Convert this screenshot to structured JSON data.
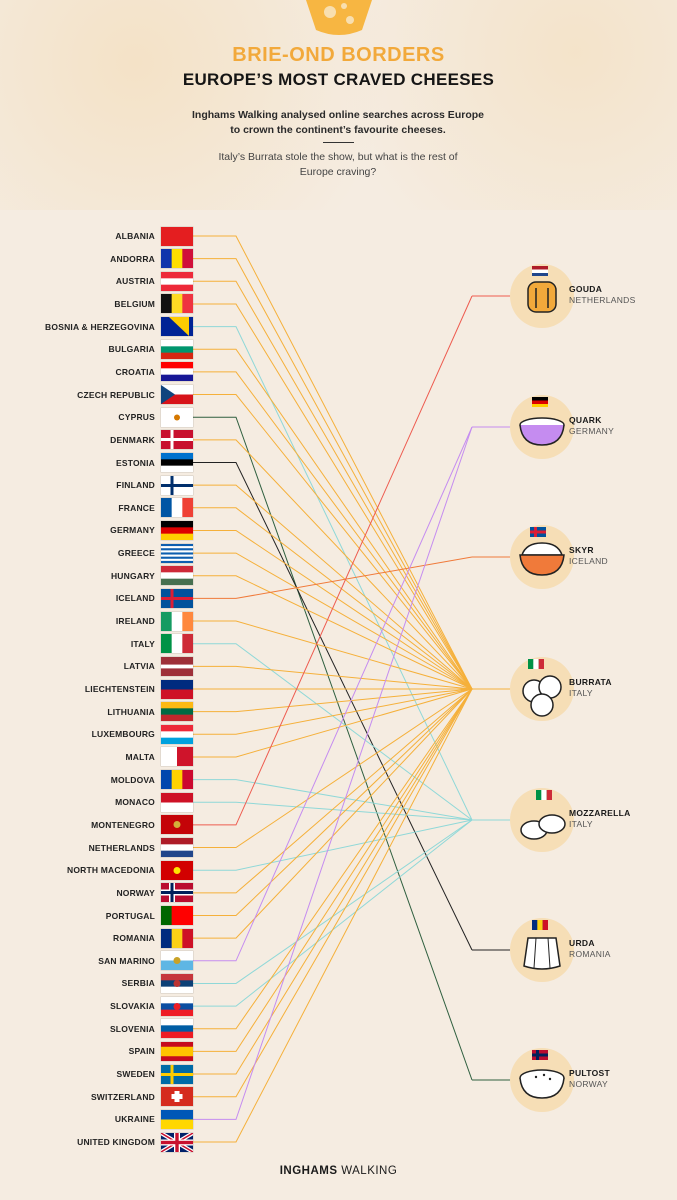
{
  "header": {
    "title_main": "BRIE-OND BORDERS",
    "title_sub": "EUROPE’S MOST CRAVED CHEESES",
    "intro": "Inghams Walking analysed online searches across Europe to crown the continent’s favourite cheeses.",
    "subtitle": "Italy’s Burrata stole the show, but what is the rest of Europe craving?"
  },
  "colors": {
    "background": "#f5ece1",
    "accent": "#f2a93b",
    "gouda": "#ee5b4f",
    "quark": "#c58cf0",
    "skyr": "#f07a3a",
    "burrata": "#f5b03a",
    "mozzarella": "#8fd8d8",
    "urda": "#222222",
    "pultost": "#2f5f3f"
  },
  "cheeses": [
    {
      "key": "gouda",
      "name": "GOUDA",
      "country": "NETHERLANDS",
      "icon": "gouda-wheel-icon"
    },
    {
      "key": "quark",
      "name": "QUARK",
      "country": "GERMANY",
      "icon": "quark-bowl-icon"
    },
    {
      "key": "skyr",
      "name": "SKYR",
      "country": "ICELAND",
      "icon": "skyr-bowl-icon"
    },
    {
      "key": "burrata",
      "name": "BURRATA",
      "country": "ITALY",
      "icon": "burrata-balls-icon"
    },
    {
      "key": "mozzarella",
      "name": "MOZZARELLA",
      "country": "ITALY",
      "icon": "mozzarella-balls-icon"
    },
    {
      "key": "urda",
      "name": "URDA",
      "country": "ROMANIA",
      "icon": "urda-cheese-icon"
    },
    {
      "key": "pultost",
      "name": "PULTOST",
      "country": "NORWAY",
      "icon": "pultost-bowl-icon"
    }
  ],
  "countries": [
    {
      "name": "ALBANIA",
      "cheese": "burrata"
    },
    {
      "name": "ANDORRA",
      "cheese": "burrata"
    },
    {
      "name": "AUSTRIA",
      "cheese": "burrata"
    },
    {
      "name": "BELGIUM",
      "cheese": "burrata"
    },
    {
      "name": "BOSNIA  & HERZEGOVINA",
      "cheese": "mozzarella"
    },
    {
      "name": "BULGARIA",
      "cheese": "burrata"
    },
    {
      "name": "CROATIA",
      "cheese": "burrata"
    },
    {
      "name": "CZECH REPUBLIC",
      "cheese": "burrata"
    },
    {
      "name": "CYPRUS",
      "cheese": "pultost"
    },
    {
      "name": "DENMARK",
      "cheese": "burrata"
    },
    {
      "name": "ESTONIA",
      "cheese": "urda"
    },
    {
      "name": "FINLAND",
      "cheese": "burrata"
    },
    {
      "name": "FRANCE",
      "cheese": "burrata"
    },
    {
      "name": "GERMANY",
      "cheese": "burrata"
    },
    {
      "name": "GREECE",
      "cheese": "burrata"
    },
    {
      "name": "HUNGARY",
      "cheese": "burrata"
    },
    {
      "name": "ICELAND",
      "cheese": "skyr"
    },
    {
      "name": "IRELAND",
      "cheese": "burrata"
    },
    {
      "name": "ITALY",
      "cheese": "mozzarella"
    },
    {
      "name": "LATVIA",
      "cheese": "burrata"
    },
    {
      "name": "LIECHTENSTEIN",
      "cheese": "burrata"
    },
    {
      "name": "LITHUANIA",
      "cheese": "burrata"
    },
    {
      "name": "LUXEMBOURG",
      "cheese": "burrata"
    },
    {
      "name": "MALTA",
      "cheese": "burrata"
    },
    {
      "name": "MOLDOVA",
      "cheese": "mozzarella"
    },
    {
      "name": "MONACO",
      "cheese": "mozzarella"
    },
    {
      "name": "MONTENEGRO",
      "cheese": "gouda"
    },
    {
      "name": "NETHERLANDS",
      "cheese": "burrata"
    },
    {
      "name": "NORTH MACEDONIA",
      "cheese": "mozzarella"
    },
    {
      "name": "NORWAY",
      "cheese": "burrata"
    },
    {
      "name": "PORTUGAL",
      "cheese": "burrata"
    },
    {
      "name": "ROMANIA",
      "cheese": "burrata"
    },
    {
      "name": "SAN MARINO",
      "cheese": "quark"
    },
    {
      "name": "SERBIA",
      "cheese": "mozzarella"
    },
    {
      "name": "SLOVAKIA",
      "cheese": "mozzarella"
    },
    {
      "name": "SLOVENIA",
      "cheese": "burrata"
    },
    {
      "name": "SPAIN",
      "cheese": "burrata"
    },
    {
      "name": "SWEDEN",
      "cheese": "burrata"
    },
    {
      "name": "SWITZERLAND",
      "cheese": "burrata"
    },
    {
      "name": "UKRAINE",
      "cheese": "quark"
    },
    {
      "name": "UNITED KINGDOM",
      "cheese": "burrata"
    }
  ],
  "footer": {
    "brand_bold": "INGHAMS",
    "brand_light": " WALKING"
  }
}
